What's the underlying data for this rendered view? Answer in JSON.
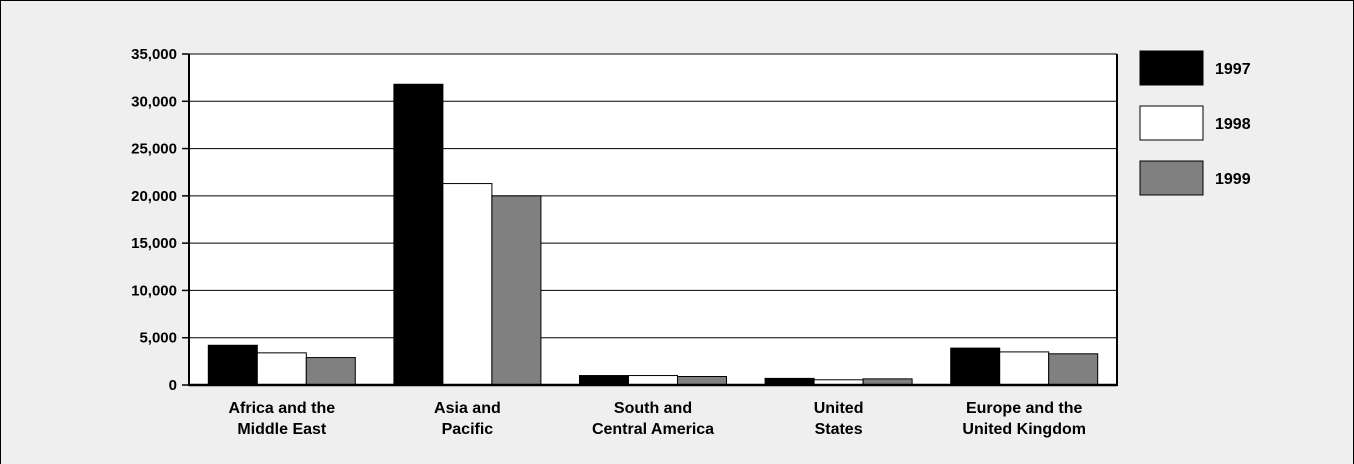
{
  "chart_data": {
    "type": "bar",
    "title": "",
    "xlabel": "",
    "ylabel": "",
    "ylim": [
      0,
      35000
    ],
    "yticks": [
      0,
      5000,
      10000,
      15000,
      20000,
      25000,
      30000,
      35000
    ],
    "ytick_labels": [
      "0",
      "5,000",
      "10,000",
      "15,000",
      "20,000",
      "25,000",
      "30,000",
      "35,000"
    ],
    "grid": true,
    "legend_position": "right",
    "categories": [
      [
        "Africa and the",
        "Middle East"
      ],
      [
        "Asia and",
        "Pacific"
      ],
      [
        "South and",
        "Central America"
      ],
      [
        "United",
        "States"
      ],
      [
        "Europe and the",
        "United Kingdom"
      ]
    ],
    "series": [
      {
        "name": "1997",
        "color": "#000000",
        "values": [
          4200,
          31800,
          1000,
          700,
          3900
        ]
      },
      {
        "name": "1998",
        "color": "#ffffff",
        "values": [
          3400,
          21300,
          1000,
          550,
          3500
        ]
      },
      {
        "name": "1999",
        "color": "#808080",
        "values": [
          2900,
          20000,
          900,
          650,
          3300
        ]
      }
    ]
  }
}
